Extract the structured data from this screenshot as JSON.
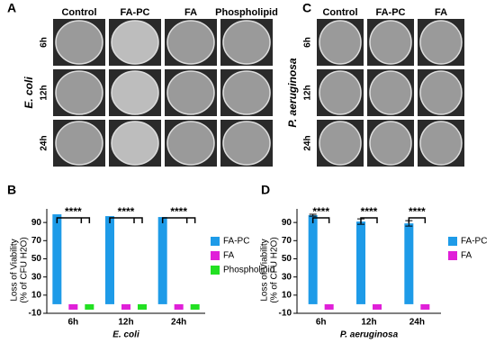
{
  "panels": {
    "A": {
      "letter": "A",
      "columns": [
        "Control",
        "FA-PC",
        "FA",
        "Phospholipid"
      ],
      "rows": [
        "6h",
        "12h",
        "24h"
      ],
      "organism": "E. coli"
    },
    "C": {
      "letter": "C",
      "columns": [
        "Control",
        "FA-PC",
        "FA"
      ],
      "rows": [
        "6h",
        "12h",
        "24h"
      ],
      "organism": "P. aeruginosa"
    }
  },
  "chart_data": [
    {
      "type": "bar",
      "letter": "B",
      "y_label": [
        "Loss of Viability",
        "(% of CFU H2O)"
      ],
      "x_label": "E. coli",
      "categories": [
        "6h",
        "12h",
        "24h"
      ],
      "series": [
        {
          "name": "FA-PC",
          "color": "#1e9be8",
          "values": [
            99,
            97,
            96
          ]
        },
        {
          "name": "FA",
          "color": "#e020d8",
          "values": [
            -6,
            -6,
            -6
          ]
        },
        {
          "name": "Phospholipid",
          "color": "#22e022",
          "values": [
            -6,
            -6,
            -6
          ]
        }
      ],
      "annotations": [
        "****",
        "****",
        "****"
      ],
      "ylim": [
        -10,
        105
      ],
      "yticks": [
        -10,
        10,
        30,
        50,
        70,
        90
      ]
    },
    {
      "type": "bar",
      "letter": "D",
      "y_label": [
        "Loss of Viability",
        "(% of CFU H2O)"
      ],
      "x_label": "P. aeruginosa",
      "categories": [
        "6h",
        "12h",
        "24h"
      ],
      "series": [
        {
          "name": "FA-PC",
          "color": "#1e9be8",
          "values": [
            98,
            91,
            89
          ],
          "errors": [
            1,
            3,
            3
          ]
        },
        {
          "name": "FA",
          "color": "#e020d8",
          "values": [
            -6,
            -6,
            -6
          ]
        }
      ],
      "annotations": [
        "****",
        "****",
        "****"
      ],
      "ylim": [
        -10,
        105
      ],
      "yticks": [
        -10,
        10,
        30,
        50,
        70,
        90
      ]
    }
  ]
}
